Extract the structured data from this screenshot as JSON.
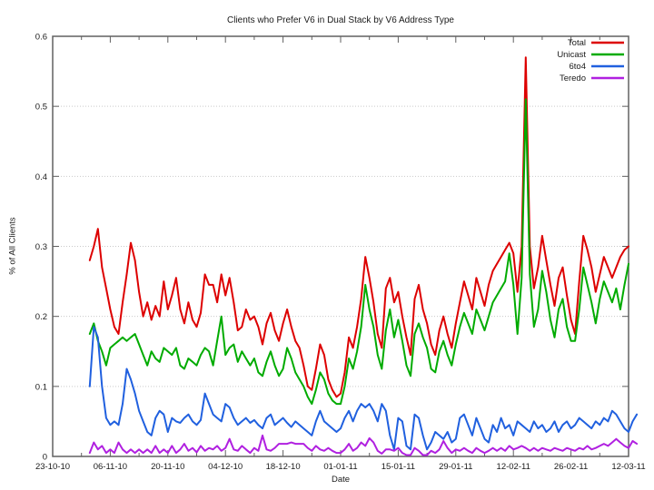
{
  "chart_data": {
    "type": "line",
    "title": "Clients who Prefer V6 in Dual Stack by V6 Address Type",
    "xlabel": "Date",
    "ylabel": "% of All Clients",
    "ylim": [
      0,
      0.6
    ],
    "y_ticks": [
      0,
      0.1,
      0.2,
      0.3,
      0.4,
      0.5,
      0.6
    ],
    "y_tick_labels": [
      "0",
      "0.1",
      "0.2",
      "0.3",
      "0.4",
      "0.5",
      "0.6"
    ],
    "x_axis_range": [
      "23-10-10",
      "12-03-11"
    ],
    "x_tick_labels": [
      "23-10-10",
      "06-11-10",
      "20-11-10",
      "04-12-10",
      "18-12-10",
      "01-01-11",
      "15-01-11",
      "29-01-11",
      "12-02-11",
      "26-02-11",
      "12-03-11"
    ],
    "x_tick_interval_days": 14,
    "x_minor_tick_days": 7,
    "grid": "horizontal-dotted",
    "legend_position": "top-right-inside",
    "data_start_day_offset": 9,
    "point_interval_days": 1,
    "series": [
      {
        "name": "Total",
        "color": "#dd0000",
        "values": [
          0.28,
          0.3,
          0.325,
          0.27,
          0.24,
          0.21,
          0.185,
          0.175,
          0.22,
          0.26,
          0.305,
          0.28,
          0.235,
          0.2,
          0.22,
          0.195,
          0.215,
          0.2,
          0.25,
          0.21,
          0.23,
          0.255,
          0.21,
          0.19,
          0.22,
          0.195,
          0.185,
          0.205,
          0.26,
          0.245,
          0.245,
          0.22,
          0.26,
          0.23,
          0.255,
          0.22,
          0.18,
          0.185,
          0.21,
          0.195,
          0.2,
          0.185,
          0.16,
          0.19,
          0.205,
          0.18,
          0.165,
          0.19,
          0.21,
          0.185,
          0.165,
          0.155,
          0.13,
          0.1,
          0.095,
          0.125,
          0.16,
          0.145,
          0.11,
          0.095,
          0.085,
          0.09,
          0.12,
          0.17,
          0.155,
          0.185,
          0.225,
          0.285,
          0.255,
          0.22,
          0.175,
          0.155,
          0.24,
          0.255,
          0.22,
          0.235,
          0.2,
          0.17,
          0.145,
          0.225,
          0.245,
          0.21,
          0.19,
          0.16,
          0.145,
          0.18,
          0.2,
          0.175,
          0.155,
          0.19,
          0.22,
          0.25,
          0.23,
          0.21,
          0.255,
          0.235,
          0.215,
          0.245,
          0.265,
          0.275,
          0.285,
          0.295,
          0.305,
          0.29,
          0.235,
          0.3,
          0.57,
          0.3,
          0.24,
          0.27,
          0.315,
          0.28,
          0.245,
          0.215,
          0.255,
          0.27,
          0.23,
          0.195,
          0.175,
          0.25,
          0.315,
          0.295,
          0.27,
          0.235,
          0.26,
          0.285,
          0.27,
          0.255,
          0.27,
          0.285,
          0.295,
          0.3,
          null,
          null
        ]
      },
      {
        "name": "Unicast",
        "color": "#00ab00",
        "values": [
          0.175,
          0.19,
          0.165,
          0.15,
          0.13,
          0.155,
          0.16,
          0.165,
          0.17,
          0.165,
          0.17,
          0.175,
          0.16,
          0.145,
          0.13,
          0.15,
          0.14,
          0.135,
          0.155,
          0.15,
          0.145,
          0.155,
          0.13,
          0.125,
          0.14,
          0.135,
          0.13,
          0.145,
          0.155,
          0.15,
          0.13,
          0.165,
          0.2,
          0.145,
          0.155,
          0.16,
          0.135,
          0.15,
          0.14,
          0.13,
          0.14,
          0.12,
          0.115,
          0.135,
          0.15,
          0.13,
          0.115,
          0.125,
          0.155,
          0.14,
          0.12,
          0.11,
          0.1,
          0.085,
          0.075,
          0.095,
          0.12,
          0.11,
          0.09,
          0.08,
          0.075,
          0.075,
          0.1,
          0.14,
          0.125,
          0.15,
          0.185,
          0.245,
          0.21,
          0.185,
          0.145,
          0.125,
          0.18,
          0.21,
          0.17,
          0.195,
          0.165,
          0.13,
          0.115,
          0.175,
          0.19,
          0.17,
          0.155,
          0.125,
          0.12,
          0.15,
          0.165,
          0.145,
          0.13,
          0.16,
          0.185,
          0.205,
          0.19,
          0.175,
          0.21,
          0.195,
          0.18,
          0.2,
          0.22,
          0.23,
          0.24,
          0.25,
          0.29,
          0.245,
          0.175,
          0.255,
          0.51,
          0.26,
          0.185,
          0.21,
          0.265,
          0.235,
          0.195,
          0.17,
          0.21,
          0.225,
          0.185,
          0.165,
          0.165,
          0.21,
          0.27,
          0.245,
          0.22,
          0.19,
          0.225,
          0.25,
          0.235,
          0.22,
          0.24,
          0.21,
          0.245,
          0.275,
          null,
          null
        ]
      },
      {
        "name": "6to4",
        "color": "#2060df",
        "values": [
          0.1,
          0.185,
          0.17,
          0.1,
          0.055,
          0.045,
          0.05,
          0.045,
          0.075,
          0.125,
          0.11,
          0.09,
          0.065,
          0.05,
          0.035,
          0.03,
          0.055,
          0.065,
          0.06,
          0.035,
          0.055,
          0.05,
          0.048,
          0.055,
          0.06,
          0.05,
          0.045,
          0.052,
          0.09,
          0.075,
          0.06,
          0.055,
          0.05,
          0.075,
          0.07,
          0.055,
          0.045,
          0.05,
          0.055,
          0.048,
          0.052,
          0.045,
          0.04,
          0.055,
          0.06,
          0.045,
          0.05,
          0.055,
          0.048,
          0.042,
          0.05,
          0.045,
          0.04,
          0.035,
          0.03,
          0.05,
          0.065,
          0.05,
          0.045,
          0.04,
          0.035,
          0.04,
          0.055,
          0.065,
          0.05,
          0.065,
          0.075,
          0.07,
          0.075,
          0.065,
          0.05,
          0.075,
          0.065,
          0.03,
          0.01,
          0.055,
          0.05,
          0.015,
          0.01,
          0.06,
          0.055,
          0.03,
          0.01,
          0.02,
          0.035,
          0.03,
          0.025,
          0.035,
          0.02,
          0.025,
          0.055,
          0.06,
          0.045,
          0.03,
          0.055,
          0.04,
          0.025,
          0.02,
          0.045,
          0.035,
          0.055,
          0.04,
          0.045,
          0.03,
          0.05,
          0.045,
          0.04,
          0.035,
          0.05,
          0.04,
          0.045,
          0.035,
          0.04,
          0.05,
          0.035,
          0.045,
          0.05,
          0.04,
          0.045,
          0.055,
          0.05,
          0.045,
          0.04,
          0.05,
          0.045,
          0.055,
          0.05,
          0.065,
          0.06,
          0.05,
          0.04,
          0.035,
          0.05,
          0.06
        ]
      },
      {
        "name": "Teredo",
        "color": "#b020e0",
        "values": [
          0.005,
          0.02,
          0.01,
          0.015,
          0.005,
          0.01,
          0.005,
          0.02,
          0.01,
          0.005,
          0.01,
          0.005,
          0.01,
          0.005,
          0.01,
          0.005,
          0.015,
          0.005,
          0.01,
          0.005,
          0.015,
          0.005,
          0.01,
          0.018,
          0.008,
          0.012,
          0.006,
          0.015,
          0.008,
          0.012,
          0.01,
          0.015,
          0.008,
          0.012,
          0.025,
          0.01,
          0.008,
          0.015,
          0.01,
          0.005,
          0.012,
          0.008,
          0.03,
          0.01,
          0.008,
          0.012,
          0.018,
          0.018,
          0.018,
          0.02,
          0.018,
          0.018,
          0.018,
          0.012,
          0.008,
          0.015,
          0.01,
          0.008,
          0.012,
          0.008,
          0.005,
          0.005,
          0.01,
          0.018,
          0.008,
          0.012,
          0.02,
          0.015,
          0.026,
          0.02,
          0.008,
          0.004,
          0.01,
          0.01,
          0.008,
          0.012,
          0.005,
          0.002,
          0.002,
          0.012,
          0.008,
          0.002,
          0.002,
          0.008,
          0.005,
          0.01,
          0.022,
          0.012,
          0.005,
          0.01,
          0.008,
          0.012,
          0.008,
          0.005,
          0.012,
          0.008,
          0.005,
          0.008,
          0.012,
          0.008,
          0.012,
          0.008,
          0.015,
          0.01,
          0.012,
          0.015,
          0.012,
          0.008,
          0.012,
          0.008,
          0.012,
          0.01,
          0.008,
          0.012,
          0.01,
          0.008,
          0.012,
          0.01,
          0.008,
          0.012,
          0.01,
          0.015,
          0.01,
          0.012,
          0.015,
          0.018,
          0.015,
          0.02,
          0.025,
          0.02,
          0.015,
          0.012,
          0.022,
          0.018
        ]
      }
    ]
  },
  "colors": {
    "axis": "#606060",
    "grid": "#c9c9c9",
    "text": "#1a1a1a",
    "background": "#ffffff"
  }
}
